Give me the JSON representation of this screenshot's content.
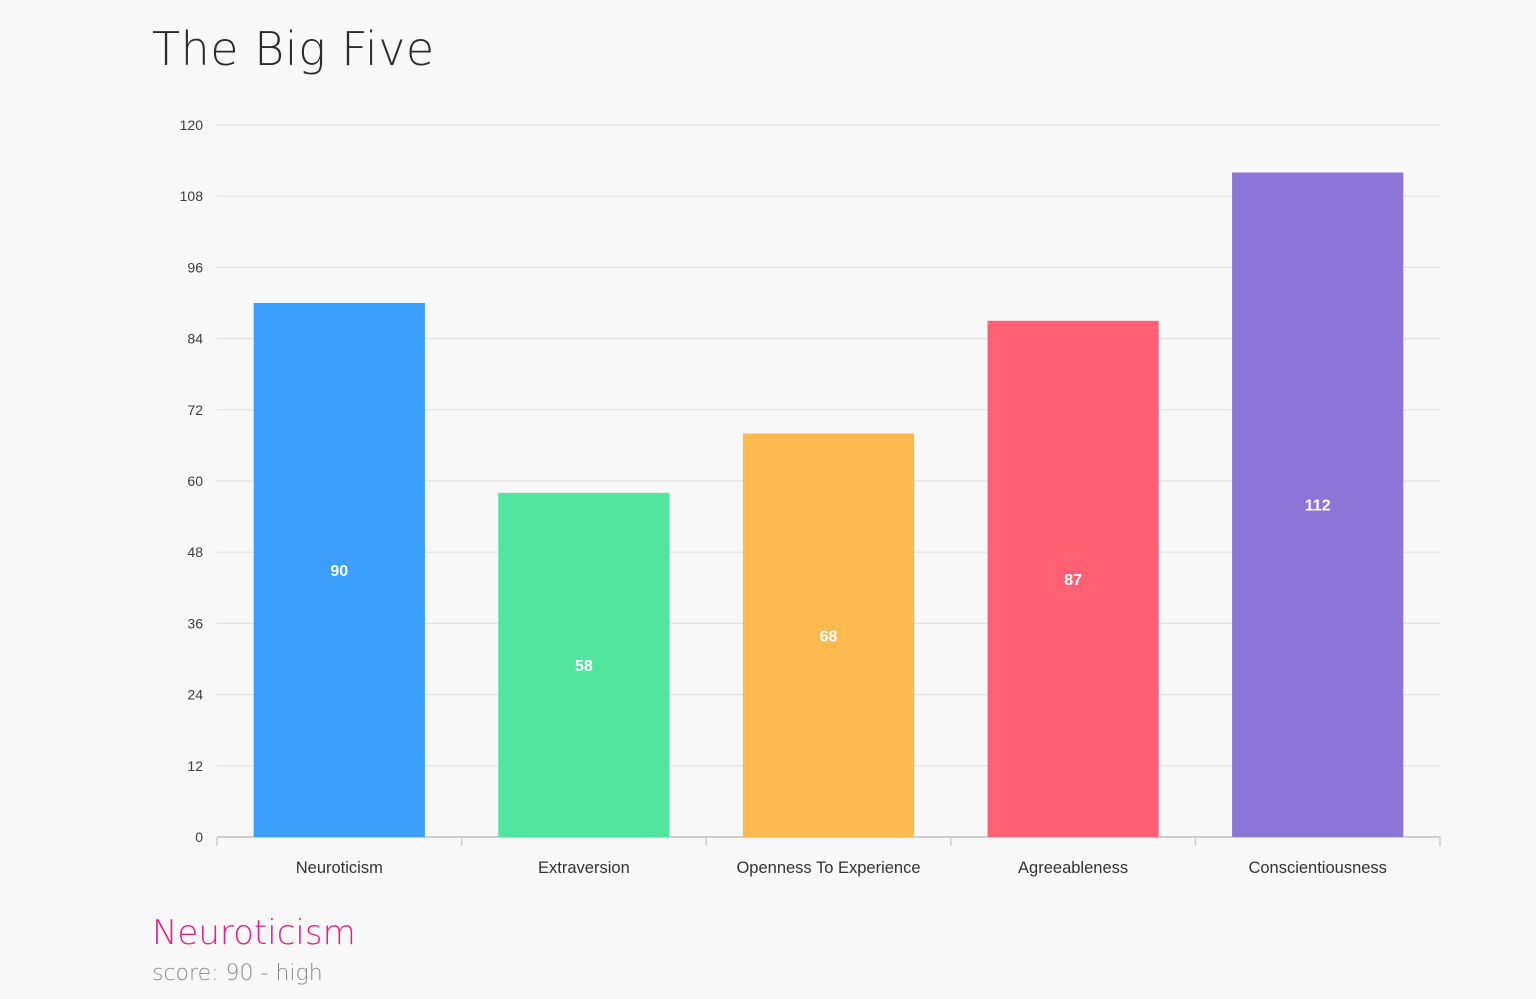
{
  "page": {
    "title": "The Big Five"
  },
  "chart_data": {
    "type": "bar",
    "categories": [
      "Neuroticism",
      "Extraversion",
      "Openness To Experience",
      "Agreeableness",
      "Conscientiousness"
    ],
    "values": [
      90,
      58,
      68,
      87,
      112
    ],
    "colors": [
      "#3d9ffc",
      "#51e5a0",
      "#fcb94f",
      "#ff6073",
      "#8b75d7"
    ],
    "ylim": [
      0,
      120
    ],
    "yticks": [
      "0",
      "12",
      "24",
      "36",
      "48",
      "60",
      "72",
      "84",
      "96",
      "108",
      "120"
    ],
    "data_labels": [
      "90",
      "58",
      "68",
      "87",
      "112"
    ],
    "grid": true,
    "legend": "none",
    "xlabel": "",
    "ylabel": ""
  },
  "detail": {
    "title": "Neuroticism",
    "score_text": "score: 90 - high"
  }
}
